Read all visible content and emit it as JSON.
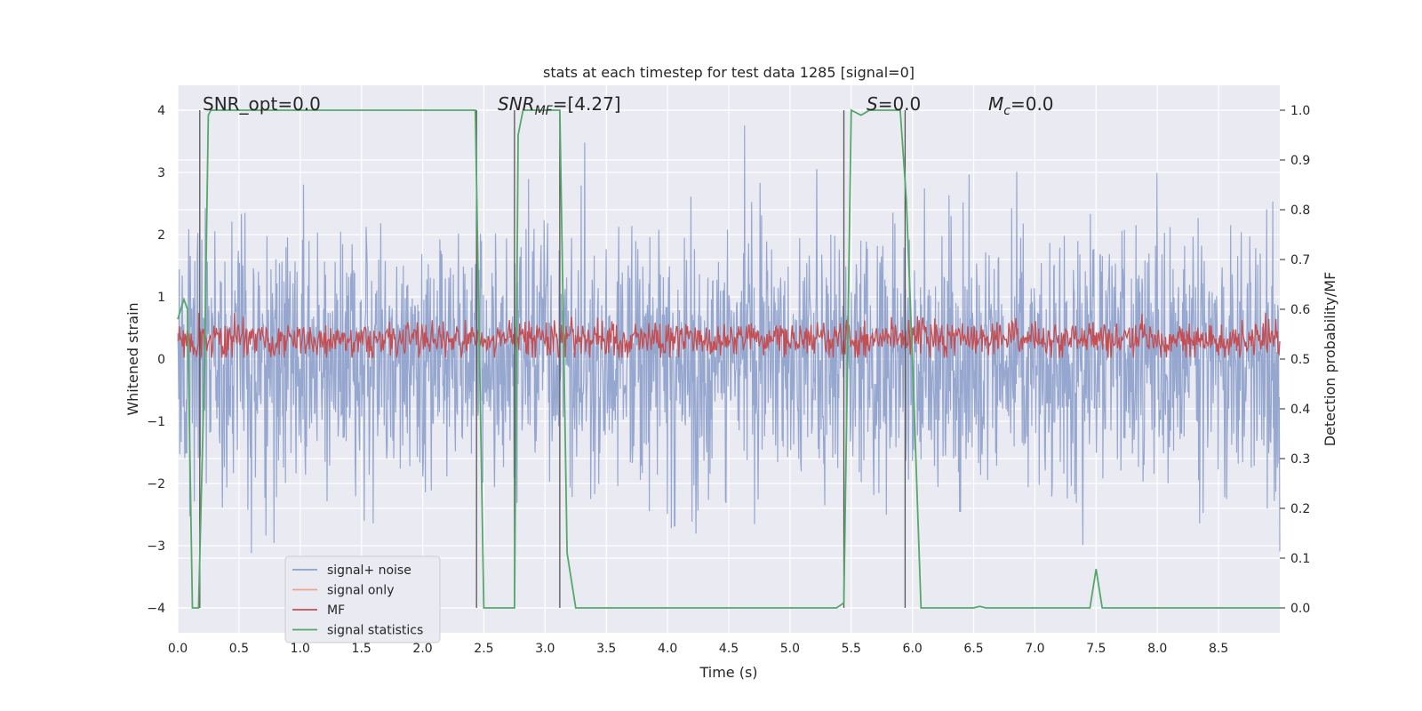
{
  "chart_data": {
    "type": "line",
    "title": "stats at each timestep for test data 1285 [signal=0]",
    "xlabel": "Time (s)",
    "ylabel_left": "Whitened strain",
    "ylabel_right": "Detection probability/MF",
    "xlim": [
      0.0,
      9.0
    ],
    "ylim_left": [
      -4.4,
      4.4
    ],
    "ylim_right": [
      -0.05,
      1.05
    ],
    "xticks": [
      "0.0",
      "0.5",
      "1.0",
      "1.5",
      "2.0",
      "2.5",
      "3.0",
      "3.5",
      "4.0",
      "4.5",
      "5.0",
      "5.5",
      "6.0",
      "6.5",
      "7.0",
      "7.5",
      "8.0",
      "8.5"
    ],
    "yticks_left": [
      "4",
      "3",
      "2",
      "1",
      "0",
      "−1",
      "−2",
      "−3",
      "−4"
    ],
    "yticks_right": [
      "1.0",
      "0.9",
      "0.8",
      "0.7",
      "0.6",
      "0.5",
      "0.4",
      "0.3",
      "0.2",
      "0.1",
      "0.0"
    ],
    "grid": true,
    "legend_position": "lower-left",
    "annotations": {
      "snr_opt": "SNR_opt=0.0",
      "snr_mf_main": "SNR",
      "snr_mf_sub": "MF",
      "snr_mf_value": "=[4.27]",
      "s_main": "S",
      "s_value": "=0.0",
      "mc_main": "M",
      "mc_sub": "c",
      "mc_value": "=0.0"
    },
    "series": [
      {
        "name": "signal+ noise",
        "color": "#8da0cb",
        "description_type": "dense-noise",
        "amplitude_typical": 1.5,
        "amplitude_peak": 4.0
      },
      {
        "name": "signal only",
        "color": "#e8a587",
        "values_note": "zero"
      },
      {
        "name": "MF",
        "color": "#c44e52",
        "range_right": [
          0.5,
          0.58
        ],
        "peak_right": 0.62
      },
      {
        "name": "signal statistics",
        "color": "#55a868",
        "x": [
          0.0,
          0.05,
          0.08,
          0.12,
          0.17,
          0.22,
          0.25,
          0.27,
          0.35,
          2.0,
          2.43,
          2.5,
          2.75,
          2.78,
          2.82,
          2.88,
          3.12,
          3.18,
          3.25,
          5.38,
          5.44,
          5.5,
          5.58,
          5.65,
          5.9,
          5.95,
          6.0,
          6.07,
          6.5,
          6.55,
          6.6,
          7.45,
          7.5,
          7.55,
          9.0
        ],
        "values": [
          0.58,
          0.62,
          0.6,
          0.0,
          0.0,
          0.5,
          0.99,
          1.0,
          1.0,
          1.0,
          1.0,
          0.0,
          0.0,
          0.95,
          1.0,
          1.0,
          1.0,
          0.11,
          0.0,
          0.0,
          0.01,
          1.0,
          0.99,
          1.0,
          1.0,
          0.82,
          0.5,
          0.0,
          0.0,
          0.003,
          0.0,
          0.0,
          0.078,
          0.0,
          0.0
        ]
      }
    ],
    "vertical_markers_x": [
      0.18,
      2.44,
      2.75,
      3.12,
      5.44,
      5.94
    ]
  }
}
